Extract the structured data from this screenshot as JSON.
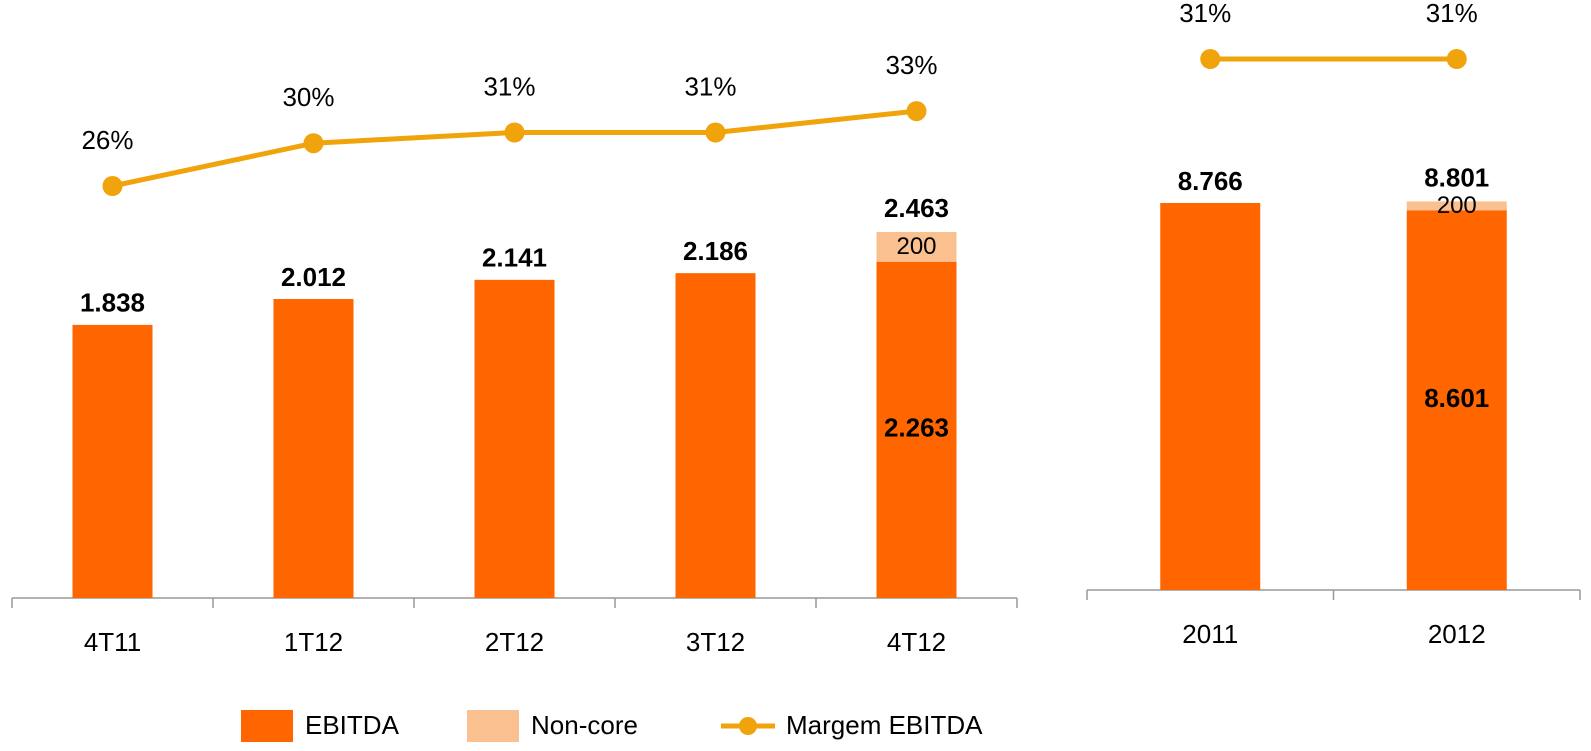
{
  "chart_data": [
    {
      "type": "bar",
      "stacked": true,
      "categories": [
        "4T11",
        "1T12",
        "2T12",
        "3T12",
        "4T12"
      ],
      "series": [
        {
          "name": "EBITDA",
          "color": "#ff6600",
          "values": [
            1838,
            2012,
            2141,
            2186,
            2263
          ],
          "value_labels": [
            "1.838",
            "2.012",
            "2.141",
            "2.186",
            "2.263"
          ]
        },
        {
          "name": "Non-core",
          "color": "#fac090",
          "values": [
            null,
            null,
            null,
            null,
            200
          ],
          "value_labels": [
            null,
            null,
            null,
            null,
            "200"
          ]
        },
        {
          "name": "Margem EBITDA",
          "type": "line",
          "axis": "y2",
          "color": "#f0a30a",
          "values": [
            26,
            30,
            31,
            31,
            33
          ],
          "value_labels": [
            "26%",
            "30%",
            "31%",
            "31%",
            "33%"
          ]
        }
      ],
      "annotations": [
        {
          "category": "4T12",
          "value": 2463,
          "label": "2.463"
        }
      ]
    },
    {
      "type": "bar",
      "stacked": true,
      "categories": [
        "2011",
        "2012"
      ],
      "series": [
        {
          "color": "#ff6600",
          "values": [
            8766,
            8601
          ],
          "value_labels": [
            "8.766",
            "8.601"
          ]
        },
        {
          "color": "#fac090",
          "values": [
            null,
            200
          ],
          "value_labels": [
            null,
            "200"
          ]
        },
        {
          "type": "line",
          "axis": "y2",
          "color": "#f0a30a",
          "values": [
            31,
            31
          ],
          "value_labels": [
            "31%",
            "31%"
          ]
        }
      ],
      "annotations": [
        {
          "category": "2012",
          "value": 8801,
          "label": "8.801"
        }
      ]
    }
  ]
}
